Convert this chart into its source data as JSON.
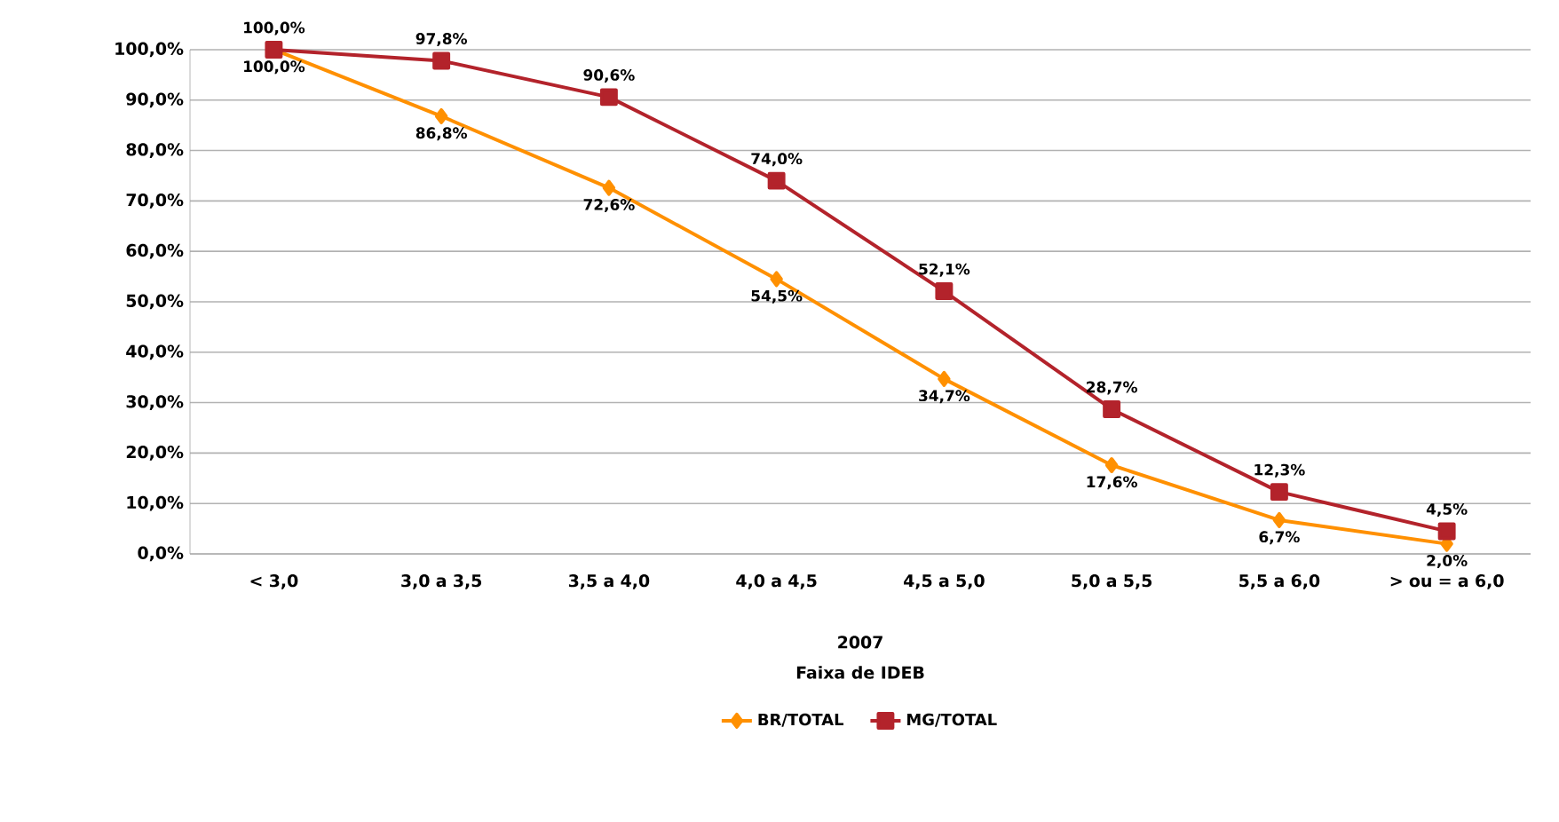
{
  "chart_data": {
    "type": "line",
    "xlabel": "Faixa de IDEB",
    "categories": [
      "< 3,0",
      "3,0 a 3,5",
      "3,5 a 4,0",
      "4,0 a 4,5",
      "4,5 a 5,0",
      "5,0 a 5,5",
      "5,5 a 6,0",
      "> ou = a 6,0"
    ],
    "series": [
      {
        "name": "BR/TOTAL",
        "color": "#ff9000",
        "marker": "diamond",
        "values": [
          100.0,
          86.8,
          72.6,
          54.5,
          34.7,
          17.6,
          6.7,
          2.0
        ],
        "value_labels": [
          "100,0%",
          "86,8%",
          "72,6%",
          "54,5%",
          "34,7%",
          "17,6%",
          "6,7%",
          "2,0%"
        ]
      },
      {
        "name": "MG/TOTAL",
        "color": "#b3232b",
        "marker": "square",
        "values": [
          100.0,
          97.8,
          90.6,
          74.0,
          52.1,
          28.7,
          12.3,
          4.5
        ],
        "value_labels": [
          "100,0%",
          "97,8%",
          "90,6%",
          "74,0%",
          "52,1%",
          "28,7%",
          "12,3%",
          "4,5%"
        ]
      }
    ],
    "ylim": [
      0,
      100
    ],
    "yticks": [
      {
        "value": 0,
        "label": "0,0%"
      },
      {
        "value": 10,
        "label": "10,0%"
      },
      {
        "value": 20,
        "label": "20,0%"
      },
      {
        "value": 30,
        "label": "30,0%"
      },
      {
        "value": 40,
        "label": "40,0%"
      },
      {
        "value": 50,
        "label": "50,0%"
      },
      {
        "value": 60,
        "label": "60,0%"
      },
      {
        "value": 70,
        "label": "70,0%"
      },
      {
        "value": 80,
        "label": "80,0%"
      },
      {
        "value": 90,
        "label": "90,0%"
      },
      {
        "value": 100,
        "label": "100,0%"
      }
    ],
    "grid": "y",
    "legend": "bottom",
    "line_style": "solid",
    "annotations": [
      "2007"
    ]
  }
}
